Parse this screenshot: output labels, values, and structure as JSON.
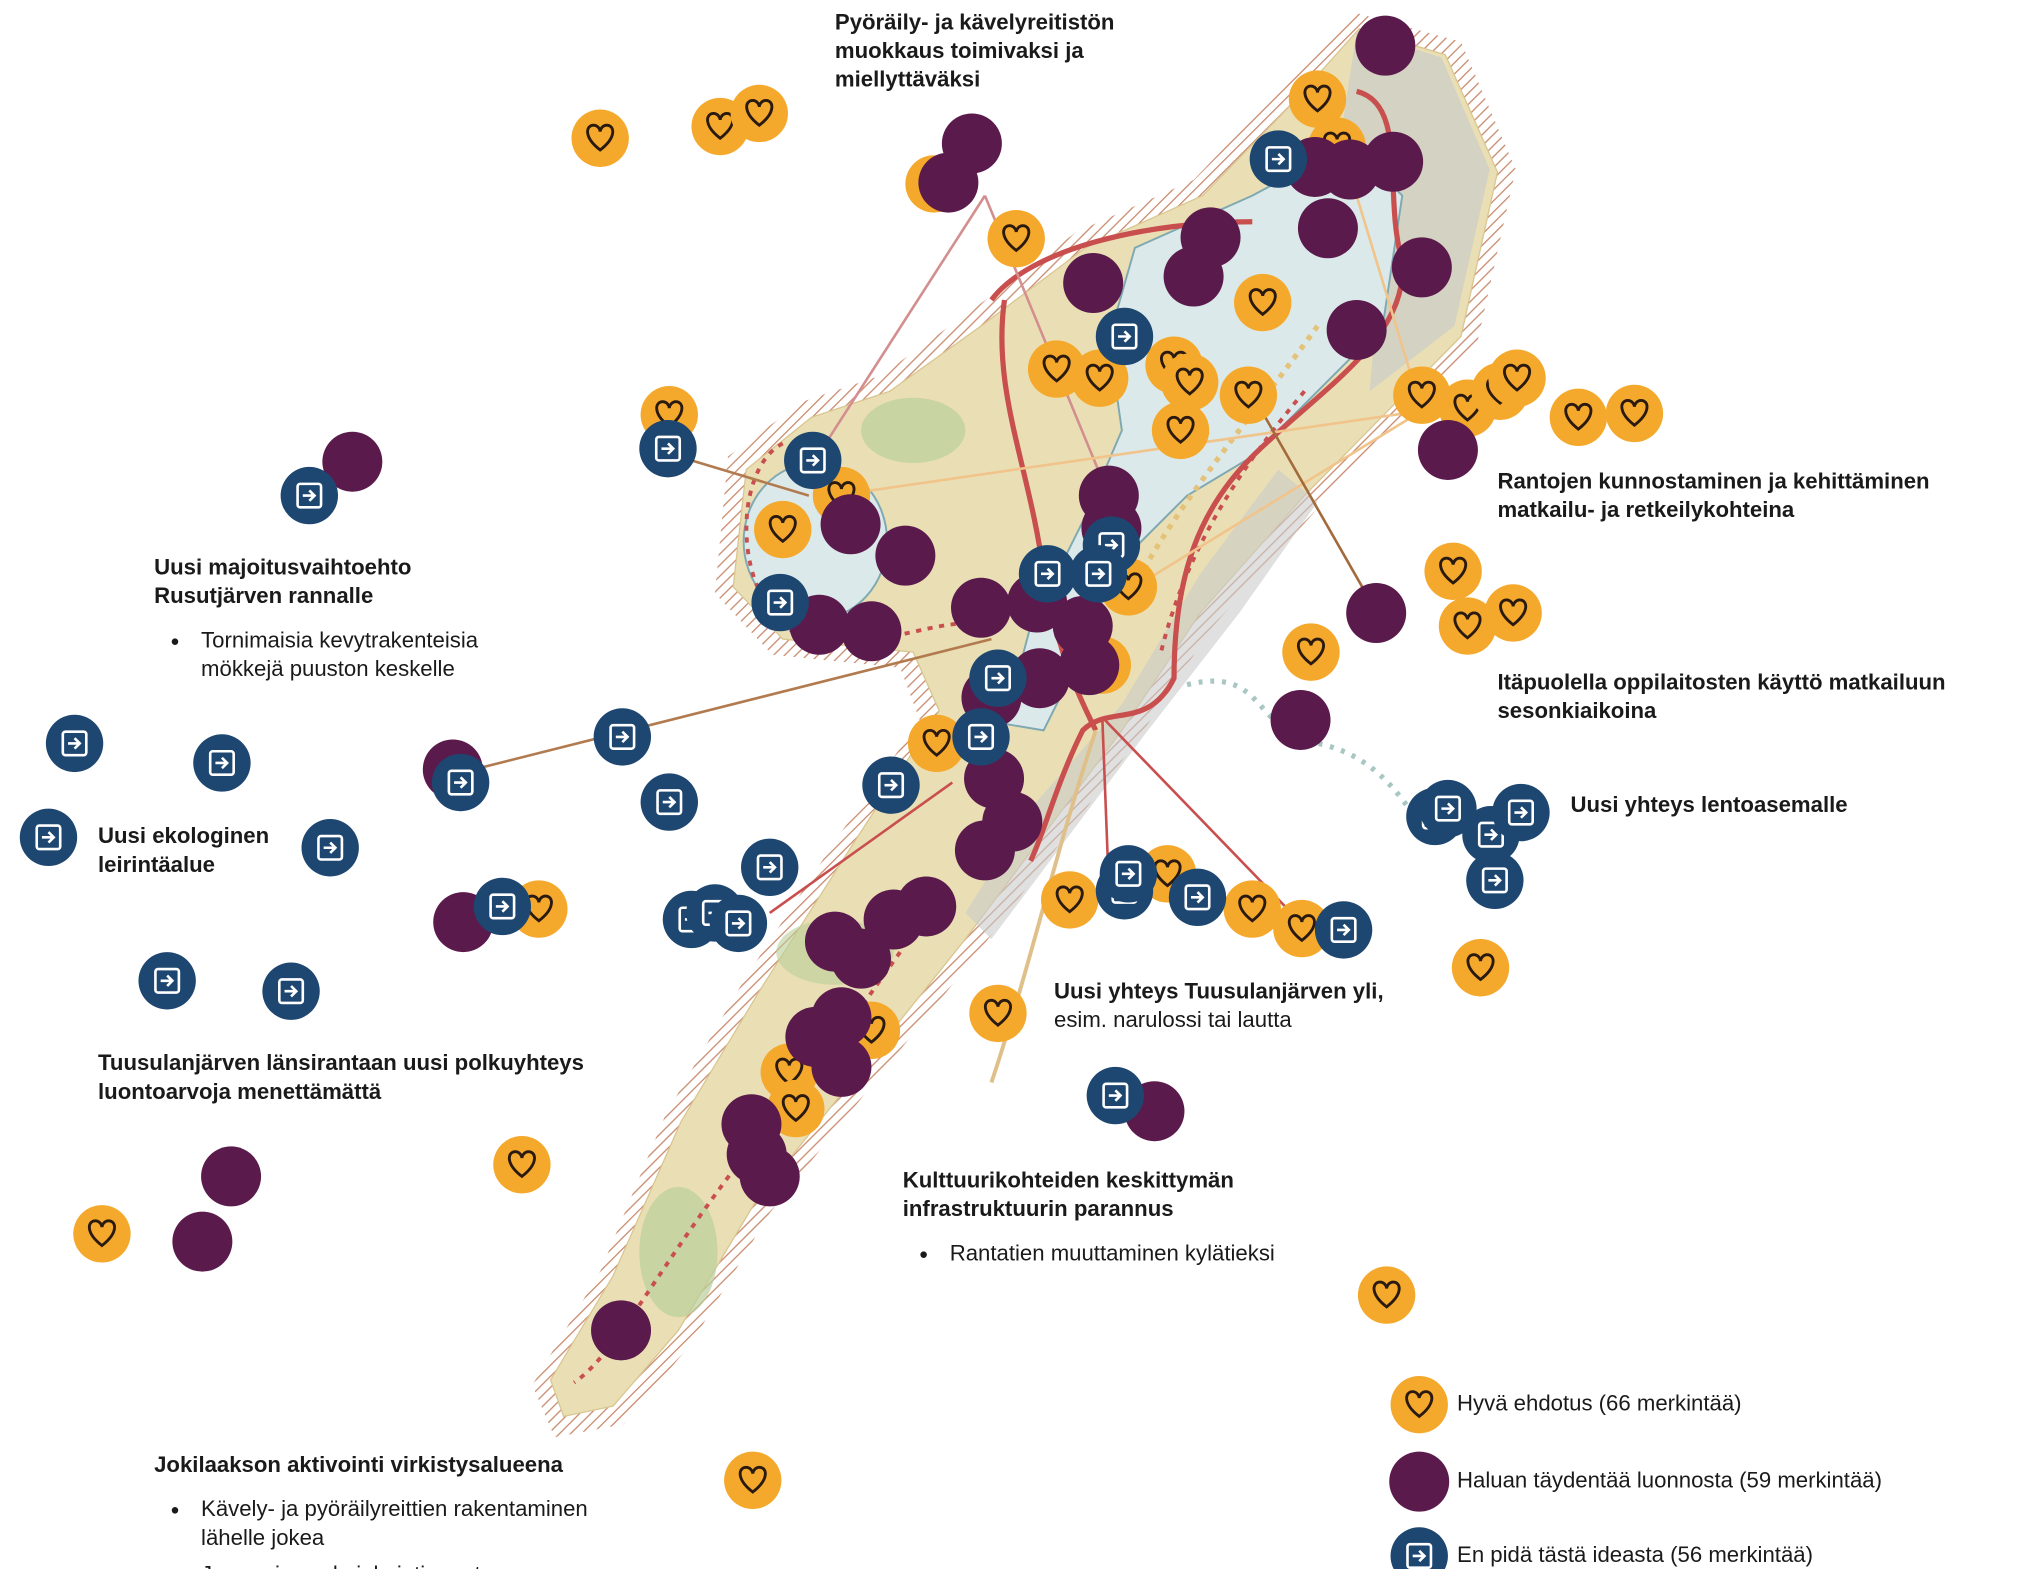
{
  "annotations": [
    {
      "title_lines": [
        "Pyöräily- ja kävelyreitistön",
        "muokkaus toimivaksi ja",
        "miellyttäväksi"
      ]
    },
    {
      "title_lines": [
        "Uusi majoitusvaihtoehto",
        "Rusutjärven rannalle"
      ],
      "bullets": [
        [
          "Tornimaisia kevytrakenteisia",
          "mökkejä puuston keskelle"
        ]
      ]
    },
    {
      "title_lines": [
        "Rantojen kunnostaminen ja kehittäminen",
        "matkailu- ja retkeilykohteina"
      ]
    },
    {
      "title_lines": [
        "Itäpuolella oppilaitosten käyttö matkailuun",
        "sesonkiaikoina"
      ]
    },
    {
      "title_lines": [
        "Uusi yhteys lentoasemalle"
      ]
    },
    {
      "title_lines": [
        "Uusi ekologinen",
        "leirintäalue"
      ]
    },
    {
      "title_lines": [
        "Uusi yhteys Tuusulanjärven yli,"
      ],
      "subtitle": "esim. narulossi tai lautta"
    },
    {
      "title_lines": [
        "Tuusulanjärven länsirantaan uusi polkuyhteys",
        "luontoarvoja menettämättä"
      ]
    },
    {
      "title_lines": [
        "Kulttuurikohteiden keskittymän",
        "infrastruktuurin parannus"
      ],
      "bullets": [
        [
          "Rantatien muuttaminen kylätieksi"
        ]
      ]
    },
    {
      "title_lines": [
        "Jokilaakson aktivointi virkistysalueena"
      ],
      "bullets": [
        [
          "Kävely- ja pyöräilyreittien rakentaminen",
          "lähelle jokea"
        ],
        [
          "Joen raivaus kajakointia varten"
        ]
      ]
    }
  ],
  "legend": [
    {
      "label": "Hyvä ehdotus (66 merkintää)"
    },
    {
      "label": "Haluan täydentää luonnosta (59 merkintää)"
    },
    {
      "label": "En pidä tästä ideasta (56 merkintää)"
    }
  ]
}
